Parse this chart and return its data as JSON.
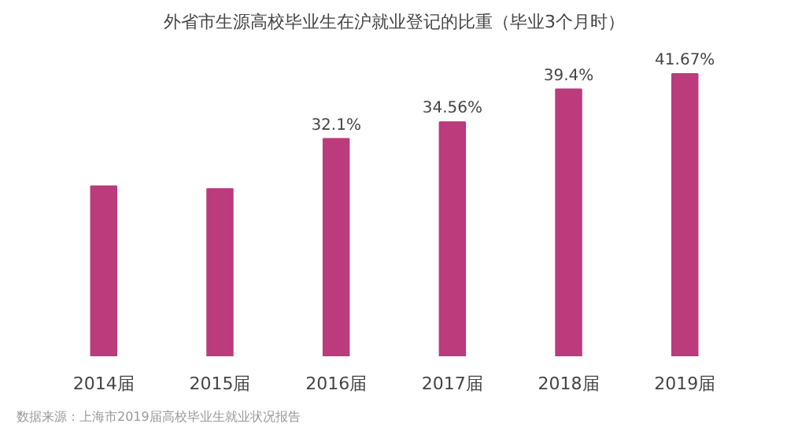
{
  "chart_data": {
    "type": "bar",
    "title": "外省市生源高校毕业生在沪就业登记的比重（毕业3个月时）",
    "categories": [
      "2014届",
      "2015届",
      "2016届",
      "2017届",
      "2018届",
      "2019届"
    ],
    "values": [
      25.1,
      24.7,
      32.1,
      34.56,
      39.4,
      41.67
    ],
    "value_labels": [
      null,
      null,
      "32.1%",
      "34.56%",
      "39.4%",
      "41.67%"
    ],
    "color": "#bb3b7c",
    "annotations": [
      "数据来源：上海市2019届高校毕业生就业状况报告"
    ]
  }
}
